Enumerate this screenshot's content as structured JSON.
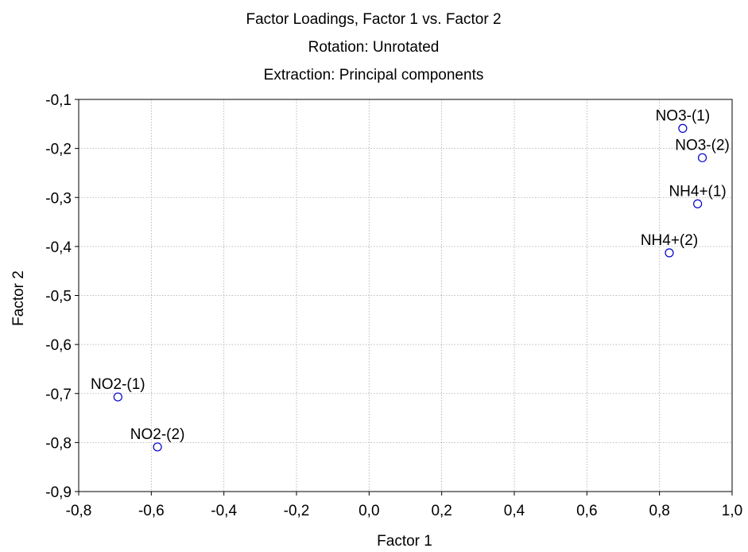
{
  "chart_data": {
    "type": "scatter",
    "title": [
      "Factor Loadings, Factor 1 vs. Factor 2",
      "Rotation: Unrotated",
      "Extraction: Principal components"
    ],
    "xlabel": "Factor 1",
    "ylabel": "Factor 2",
    "xlim": [
      -0.8,
      1.0
    ],
    "ylim": [
      -0.9,
      -0.1
    ],
    "x_ticks": [
      -0.8,
      -0.6,
      -0.4,
      -0.2,
      0.0,
      0.2,
      0.4,
      0.6,
      0.8,
      1.0
    ],
    "x_tick_labels": [
      "-0,8",
      "-0,6",
      "-0,4",
      "-0,2",
      "0,0",
      "0,2",
      "0,4",
      "0,6",
      "0,8",
      "1,0"
    ],
    "y_ticks": [
      -0.1,
      -0.2,
      -0.3,
      -0.4,
      -0.5,
      -0.6,
      -0.7,
      -0.8,
      -0.9
    ],
    "y_tick_labels": [
      "-0,1",
      "-0,2",
      "-0,3",
      "-0,4",
      "-0,5",
      "-0,6",
      "-0,7",
      "-0,8",
      "-0,9"
    ],
    "grid": true,
    "marker_color": "#0000cc",
    "points": [
      {
        "label": "NO3-(1)",
        "x": 0.864,
        "y": -0.159
      },
      {
        "label": "NO3-(2)",
        "x": 0.918,
        "y": -0.219
      },
      {
        "label": "NH4+(1)",
        "x": 0.905,
        "y": -0.313
      },
      {
        "label": "NH4+(2)",
        "x": 0.827,
        "y": -0.413
      },
      {
        "label": "NO2-(1)",
        "x": -0.692,
        "y": -0.707
      },
      {
        "label": "NO2-(2)",
        "x": -0.583,
        "y": -0.809
      }
    ]
  }
}
